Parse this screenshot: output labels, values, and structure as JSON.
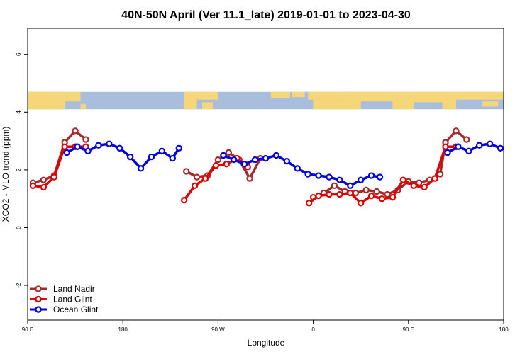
{
  "chart_data": {
    "type": "line",
    "title": "40N-50N April (Ver 11.1_late)   2019-01-01 to 2023-04-30",
    "xlabel": "Longitude",
    "ylabel": "XCO2 - MLO trend (ppm)",
    "xlim": [
      0,
      450
    ],
    "ylim": [
      -3.2,
      6.9
    ],
    "x_ticks": [
      {
        "value": 0,
        "label": "90 E"
      },
      {
        "value": 90,
        "label": "180"
      },
      {
        "value": 180,
        "label": "90 W"
      },
      {
        "value": 270,
        "label": "0"
      },
      {
        "value": 360,
        "label": "90 E"
      },
      {
        "value": 450,
        "label": "180"
      }
    ],
    "y_ticks": [
      {
        "value": -2,
        "label": "-2"
      },
      {
        "value": 0,
        "label": "0"
      },
      {
        "value": 2,
        "label": "2"
      },
      {
        "value": 4,
        "label": "4"
      },
      {
        "value": 6,
        "label": "6"
      }
    ],
    "map_strip": {
      "ymin": 4.1,
      "ymax": 4.7,
      "land_color": "#f5d77a",
      "ocean_color": "#a8bedc"
    },
    "legend_position": "bottom-left",
    "series": [
      {
        "name": "Land Nadir",
        "color": "#a52a2a",
        "segments": [
          [
            [
              5,
              1.55
            ],
            [
              15,
              1.65
            ],
            [
              25,
              1.8
            ],
            [
              35,
              2.95
            ],
            [
              45,
              3.35
            ],
            [
              55,
              3.05
            ]
          ],
          [
            [
              150,
              1.95
            ],
            [
              160,
              1.75
            ],
            [
              170,
              1.8
            ],
            [
              180,
              2.35
            ],
            [
              190,
              2.6
            ],
            [
              200,
              2.35
            ],
            [
              210,
              1.7
            ],
            [
              220,
              2.4
            ]
          ],
          [
            [
              270,
              1.05
            ],
            [
              280,
              1.2
            ],
            [
              290,
              1.45
            ],
            [
              300,
              1.25
            ],
            [
              310,
              1.2
            ],
            [
              320,
              1.3
            ],
            [
              330,
              1.25
            ],
            [
              340,
              1.15
            ],
            [
              350,
              1.3
            ],
            [
              360,
              1.6
            ],
            [
              370,
              1.55
            ],
            [
              380,
              1.65
            ],
            [
              390,
              1.85
            ],
            [
              395,
              2.95
            ],
            [
              405,
              3.35
            ],
            [
              415,
              3.05
            ]
          ]
        ]
      },
      {
        "name": "Land Glint",
        "color": "#e00000",
        "segments": [
          [
            [
              5,
              1.45
            ],
            [
              15,
              1.4
            ],
            [
              25,
              1.75
            ],
            [
              35,
              2.8
            ],
            [
              45,
              2.8
            ],
            [
              55,
              2.8
            ]
          ],
          [
            [
              148,
              0.95
            ],
            [
              158,
              1.45
            ],
            [
              168,
              1.7
            ],
            [
              178,
              2.15
            ],
            [
              188,
              2.2
            ],
            [
              198,
              2.4
            ],
            [
              208,
              2.1
            ]
          ],
          [
            [
              266,
              0.85
            ],
            [
              275,
              1.1
            ],
            [
              285,
              1.15
            ],
            [
              295,
              1.15
            ],
            [
              305,
              1.2
            ],
            [
              315,
              0.85
            ],
            [
              325,
              1.1
            ],
            [
              335,
              1.0
            ],
            [
              345,
              1.05
            ],
            [
              355,
              1.65
            ],
            [
              365,
              1.45
            ],
            [
              375,
              1.4
            ],
            [
              385,
              1.7
            ],
            [
              395,
              2.8
            ],
            [
              405,
              2.8
            ]
          ]
        ]
      },
      {
        "name": "Ocean Glint",
        "color": "#0000e0",
        "segments": [
          [
            [
              37,
              2.6
            ],
            [
              47,
              2.8
            ],
            [
              57,
              2.65
            ],
            [
              67,
              2.85
            ],
            [
              77,
              2.9
            ],
            [
              87,
              2.75
            ],
            [
              97,
              2.45
            ],
            [
              107,
              2.05
            ],
            [
              117,
              2.45
            ],
            [
              127,
              2.65
            ],
            [
              137,
              2.4
            ],
            [
              143,
              2.75
            ]
          ],
          [
            [
              185,
              2.5
            ],
            [
              195,
              2.35
            ],
            [
              205,
              2.2
            ],
            [
              215,
              2.35
            ],
            [
              225,
              2.4
            ],
            [
              235,
              2.5
            ],
            [
              245,
              2.3
            ],
            [
              255,
              2.05
            ],
            [
              265,
              1.85
            ],
            [
              275,
              1.8
            ],
            [
              285,
              1.75
            ],
            [
              295,
              1.65
            ],
            [
              305,
              1.45
            ],
            [
              315,
              1.65
            ],
            [
              325,
              1.8
            ],
            [
              333,
              1.75
            ]
          ],
          [
            [
              397,
              2.6
            ],
            [
              407,
              2.8
            ],
            [
              417,
              2.65
            ],
            [
              427,
              2.85
            ],
            [
              437,
              2.9
            ],
            [
              447,
              2.75
            ]
          ]
        ]
      }
    ]
  }
}
